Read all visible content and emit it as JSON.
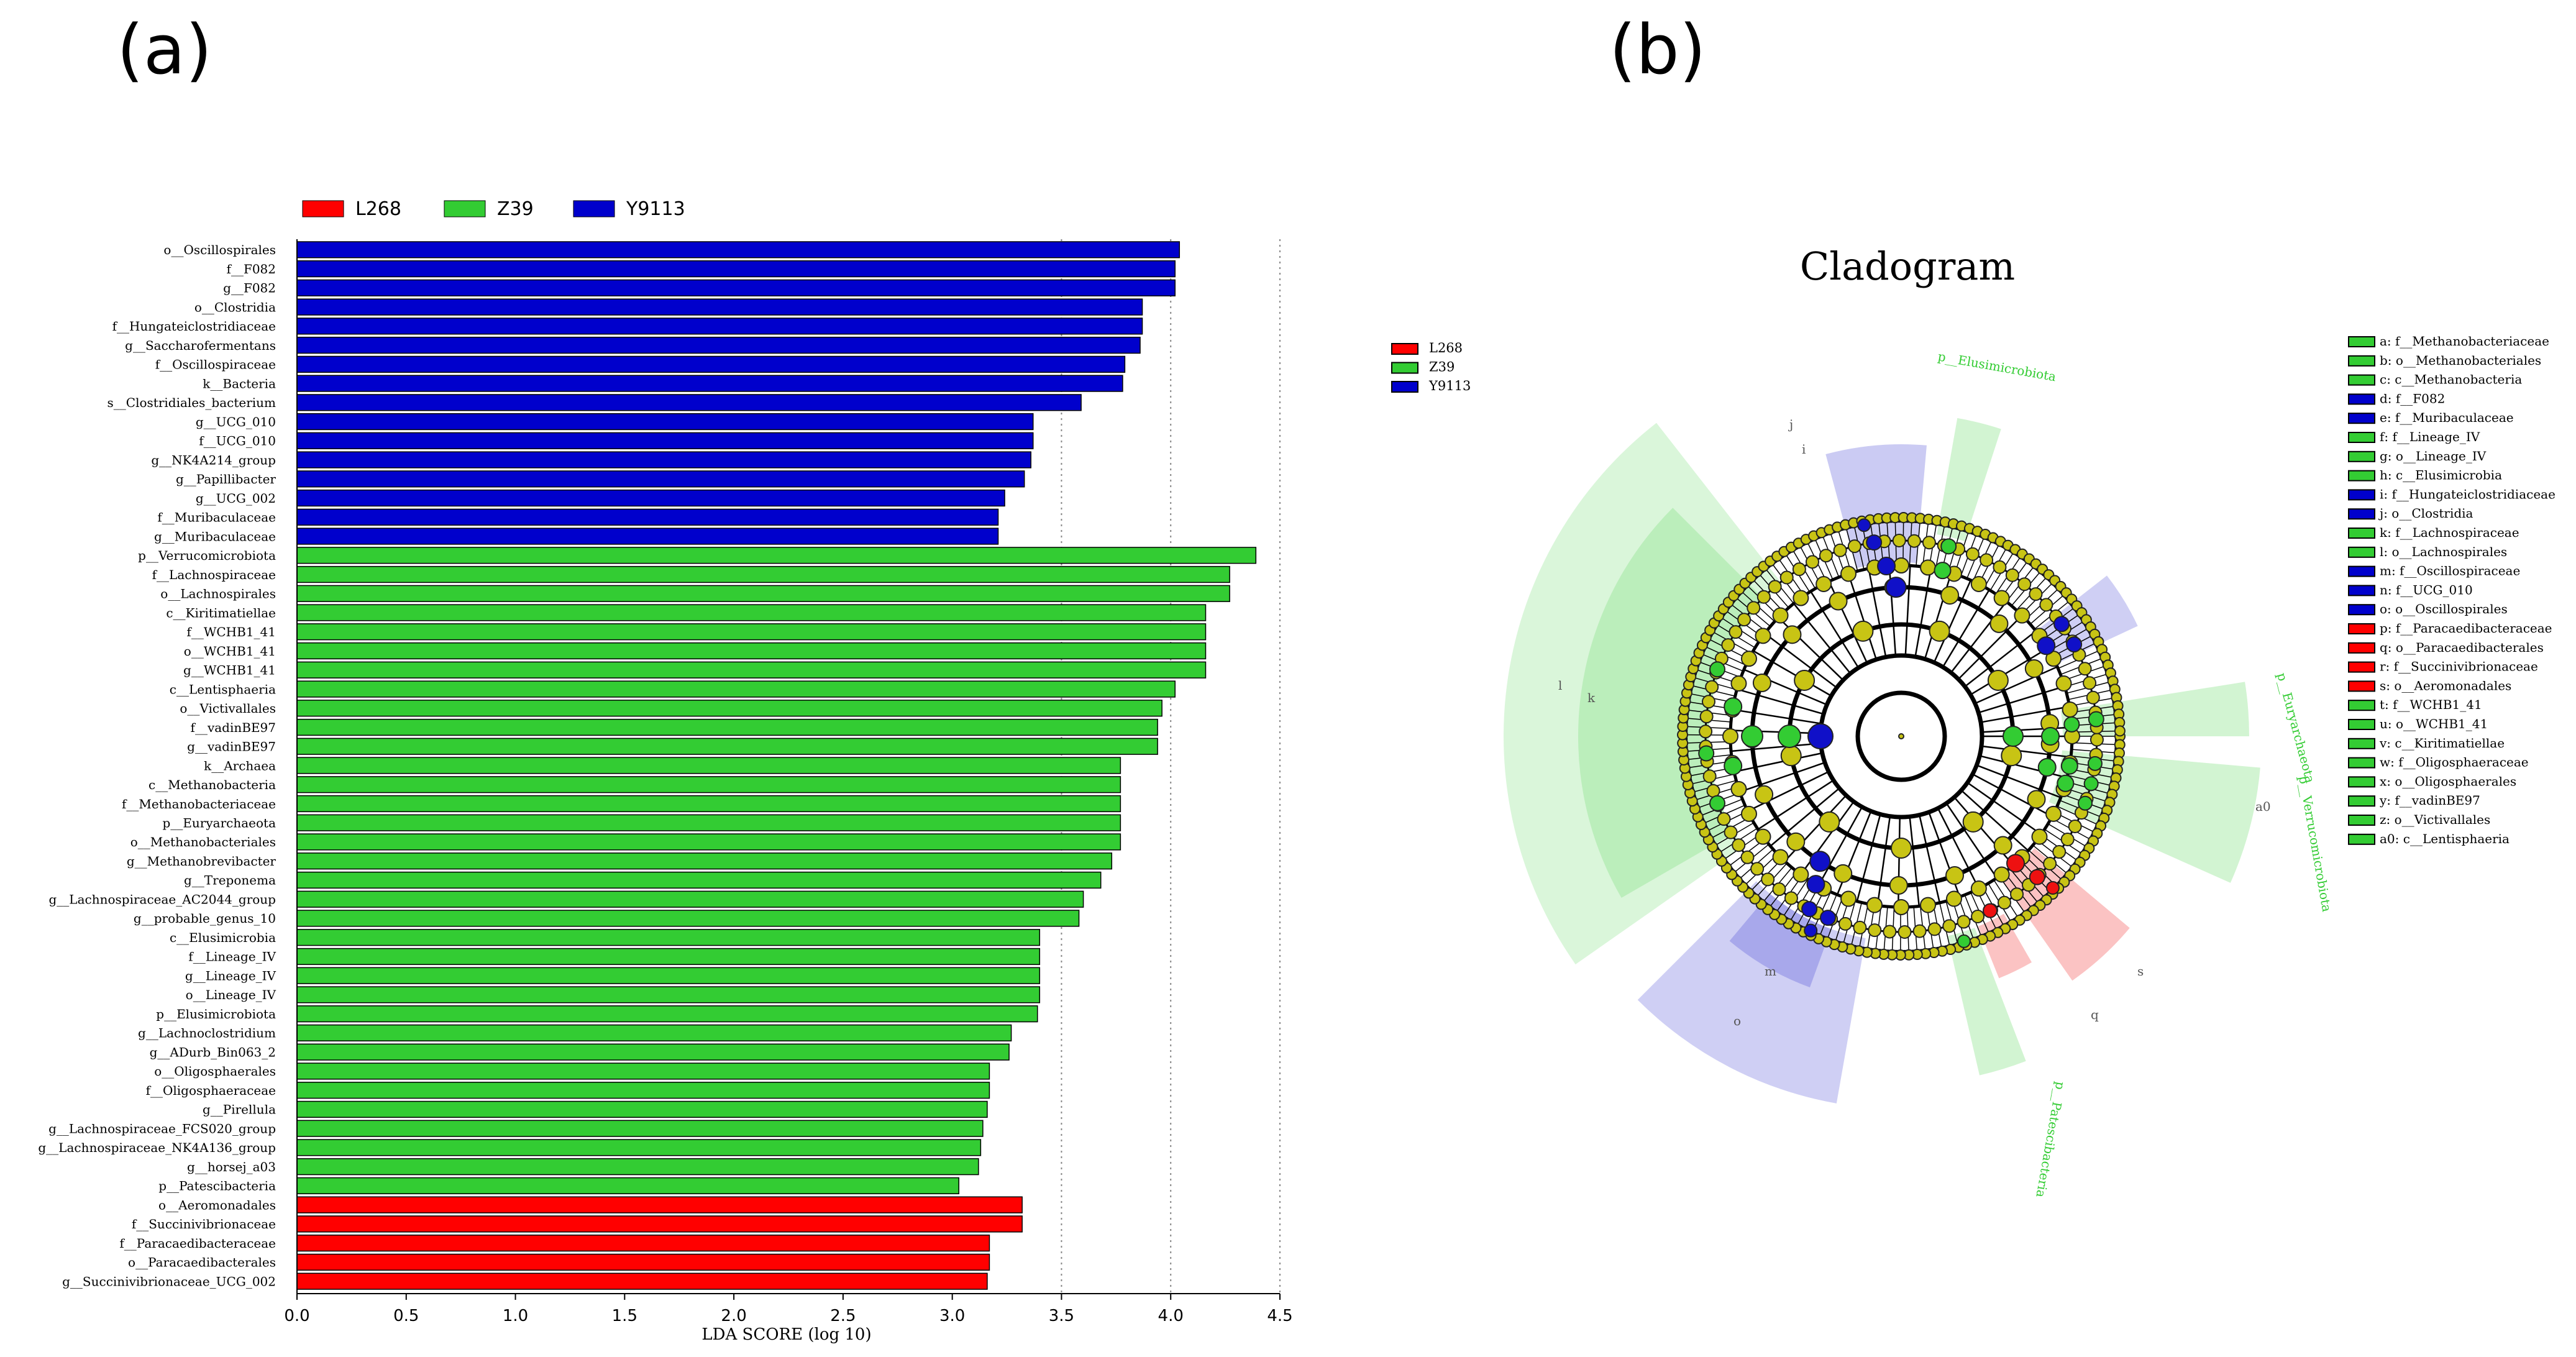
{
  "panel_labels": {
    "a": "(a)",
    "b": "(b)"
  },
  "legend_groups": [
    {
      "name": "L268",
      "color": "#ff0000"
    },
    {
      "name": "Z39",
      "color": "#33cc33"
    },
    {
      "name": "Y9113",
      "color": "#0000cc"
    }
  ],
  "chart_data": [
    {
      "type": "bar",
      "orientation": "horizontal",
      "xlabel": "LDA SCORE (log 10)",
      "xlim": [
        0,
        4.5
      ],
      "xticks": [
        "0.0",
        "0.5",
        "1.0",
        "1.5",
        "2.0",
        "2.5",
        "3.0",
        "3.5",
        "4.0",
        "4.5"
      ],
      "grid": "vertical dotted at 3.5, 4.0, 4.5",
      "legend": [
        "L268",
        "Z39",
        "Y9113"
      ],
      "bars": [
        {
          "label": "o__Oscillospirales",
          "value": 4.04,
          "group": "Y9113"
        },
        {
          "label": "f__F082",
          "value": 4.02,
          "group": "Y9113"
        },
        {
          "label": "g__F082",
          "value": 4.02,
          "group": "Y9113"
        },
        {
          "label": "o__Clostridia",
          "value": 3.87,
          "group": "Y9113"
        },
        {
          "label": "f__Hungateiclostridiaceae",
          "value": 3.87,
          "group": "Y9113"
        },
        {
          "label": "g__Saccharofermentans",
          "value": 3.86,
          "group": "Y9113"
        },
        {
          "label": "f__Oscillospiraceae",
          "value": 3.79,
          "group": "Y9113"
        },
        {
          "label": "k__Bacteria",
          "value": 3.78,
          "group": "Y9113"
        },
        {
          "label": "s__Clostridiales_bacterium",
          "value": 3.59,
          "group": "Y9113"
        },
        {
          "label": "g__UCG_010",
          "value": 3.37,
          "group": "Y9113"
        },
        {
          "label": "f__UCG_010",
          "value": 3.37,
          "group": "Y9113"
        },
        {
          "label": "g__NK4A214_group",
          "value": 3.36,
          "group": "Y9113"
        },
        {
          "label": "g__Papillibacter",
          "value": 3.33,
          "group": "Y9113"
        },
        {
          "label": "g__UCG_002",
          "value": 3.24,
          "group": "Y9113"
        },
        {
          "label": "f__Muribaculaceae",
          "value": 3.21,
          "group": "Y9113"
        },
        {
          "label": "g__Muribaculaceae",
          "value": 3.21,
          "group": "Y9113"
        },
        {
          "label": "p__Verrucomicrobiota",
          "value": 4.39,
          "group": "Z39"
        },
        {
          "label": "f__Lachnospiraceae",
          "value": 4.27,
          "group": "Z39"
        },
        {
          "label": "o__Lachnospirales",
          "value": 4.27,
          "group": "Z39"
        },
        {
          "label": "c__Kiritimatiellae",
          "value": 4.16,
          "group": "Z39"
        },
        {
          "label": "f__WCHB1_41",
          "value": 4.16,
          "group": "Z39"
        },
        {
          "label": "o__WCHB1_41",
          "value": 4.16,
          "group": "Z39"
        },
        {
          "label": "g__WCHB1_41",
          "value": 4.16,
          "group": "Z39"
        },
        {
          "label": "c__Lentisphaeria",
          "value": 4.02,
          "group": "Z39"
        },
        {
          "label": "o__Victivallales",
          "value": 3.96,
          "group": "Z39"
        },
        {
          "label": "f__vadinBE97",
          "value": 3.94,
          "group": "Z39"
        },
        {
          "label": "g__vadinBE97",
          "value": 3.94,
          "group": "Z39"
        },
        {
          "label": "k__Archaea",
          "value": 3.77,
          "group": "Z39"
        },
        {
          "label": "c__Methanobacteria",
          "value": 3.77,
          "group": "Z39"
        },
        {
          "label": "f__Methanobacteriaceae",
          "value": 3.77,
          "group": "Z39"
        },
        {
          "label": "p__Euryarchaeota",
          "value": 3.77,
          "group": "Z39"
        },
        {
          "label": "o__Methanobacteriales",
          "value": 3.77,
          "group": "Z39"
        },
        {
          "label": "g__Methanobrevibacter",
          "value": 3.73,
          "group": "Z39"
        },
        {
          "label": "g__Treponema",
          "value": 3.68,
          "group": "Z39"
        },
        {
          "label": "g__Lachnospiraceae_AC2044_group",
          "value": 3.6,
          "group": "Z39"
        },
        {
          "label": "g__probable_genus_10",
          "value": 3.58,
          "group": "Z39"
        },
        {
          "label": "c__Elusimicrobia",
          "value": 3.4,
          "group": "Z39"
        },
        {
          "label": "f__Lineage_IV",
          "value": 3.4,
          "group": "Z39"
        },
        {
          "label": "g__Lineage_IV",
          "value": 3.4,
          "group": "Z39"
        },
        {
          "label": "o__Lineage_IV",
          "value": 3.4,
          "group": "Z39"
        },
        {
          "label": "p__Elusimicrobiota",
          "value": 3.39,
          "group": "Z39"
        },
        {
          "label": "g__Lachnoclostridium",
          "value": 3.27,
          "group": "Z39"
        },
        {
          "label": "g__ADurb_Bin063_2",
          "value": 3.26,
          "group": "Z39"
        },
        {
          "label": "o__Oligosphaerales",
          "value": 3.17,
          "group": "Z39"
        },
        {
          "label": "f__Oligosphaeraceae",
          "value": 3.17,
          "group": "Z39"
        },
        {
          "label": "g__Pirellula",
          "value": 3.16,
          "group": "Z39"
        },
        {
          "label": "g__Lachnospiraceae_FCS020_group",
          "value": 3.14,
          "group": "Z39"
        },
        {
          "label": "g__Lachnospiraceae_NK4A136_group",
          "value": 3.13,
          "group": "Z39"
        },
        {
          "label": "g__horsej_a03",
          "value": 3.12,
          "group": "Z39"
        },
        {
          "label": "p__Patescibacteria",
          "value": 3.03,
          "group": "Z39"
        },
        {
          "label": "o__Aeromonadales",
          "value": 3.32,
          "group": "L268"
        },
        {
          "label": "f__Succinivibrionaceae",
          "value": 3.32,
          "group": "L268"
        },
        {
          "label": "f__Paracaedibacteraceae",
          "value": 3.17,
          "group": "L268"
        },
        {
          "label": "o__Paracaedibacterales",
          "value": 3.17,
          "group": "L268"
        },
        {
          "label": "g__Succinivibrionaceae_UCG_002",
          "value": 3.16,
          "group": "L268"
        }
      ]
    },
    {
      "type": "cladogram",
      "title": "Cladogram",
      "legend": [
        "L268",
        "Z39",
        "Y9113"
      ],
      "clade_labels": [
        "p__Elusimicrobiota",
        "p__Euryarchaeota",
        "p__Verrucomicrobiota",
        "p__Patescibacteria"
      ],
      "keys": [
        {
          "key": "a",
          "text": "a: f__Methanobacteriaceae",
          "group": "Z39"
        },
        {
          "key": "b",
          "text": "b: o__Methanobacteriales",
          "group": "Z39"
        },
        {
          "key": "c",
          "text": "c: c__Methanobacteria",
          "group": "Z39"
        },
        {
          "key": "d",
          "text": "d: f__F082",
          "group": "Y9113"
        },
        {
          "key": "e",
          "text": "e: f__Muribaculaceae",
          "group": "Y9113"
        },
        {
          "key": "f",
          "text": "f: f__Lineage_IV",
          "group": "Z39"
        },
        {
          "key": "g",
          "text": "g: o__Lineage_IV",
          "group": "Z39"
        },
        {
          "key": "h",
          "text": "h: c__Elusimicrobia",
          "group": "Z39"
        },
        {
          "key": "i",
          "text": "i: f__Hungateiclostridiaceae",
          "group": "Y9113"
        },
        {
          "key": "j",
          "text": "j: o__Clostridia",
          "group": "Y9113"
        },
        {
          "key": "k",
          "text": "k: f__Lachnospiraceae",
          "group": "Z39"
        },
        {
          "key": "l",
          "text": "l: o__Lachnospirales",
          "group": "Z39"
        },
        {
          "key": "m",
          "text": "m: f__Oscillospiraceae",
          "group": "Y9113"
        },
        {
          "key": "n",
          "text": "n: f__UCG_010",
          "group": "Y9113"
        },
        {
          "key": "o",
          "text": "o: o__Oscillospirales",
          "group": "Y9113"
        },
        {
          "key": "p",
          "text": "p: f__Paracaedibacteraceae",
          "group": "L268"
        },
        {
          "key": "q",
          "text": "q: o__Paracaedibacterales",
          "group": "L268"
        },
        {
          "key": "r",
          "text": "r: f__Succinivibrionaceae",
          "group": "L268"
        },
        {
          "key": "s",
          "text": "s: o__Aeromonadales",
          "group": "L268"
        },
        {
          "key": "t",
          "text": "t: f__WCHB1_41",
          "group": "Z39"
        },
        {
          "key": "u",
          "text": "u: o__WCHB1_41",
          "group": "Z39"
        },
        {
          "key": "v",
          "text": "v: c__Kiritimatiellae",
          "group": "Z39"
        },
        {
          "key": "w",
          "text": "w: f__Oligosphaeraceae",
          "group": "Z39"
        },
        {
          "key": "x",
          "text": "x: o__Oligosphaerales",
          "group": "Z39"
        },
        {
          "key": "y",
          "text": "y: f__vadinBE97",
          "group": "Z39"
        },
        {
          "key": "z",
          "text": "z: o__Victivallales",
          "group": "Z39"
        },
        {
          "key": "a0",
          "text": "a0: c__Lentisphaeria",
          "group": "Z39"
        }
      ]
    }
  ]
}
